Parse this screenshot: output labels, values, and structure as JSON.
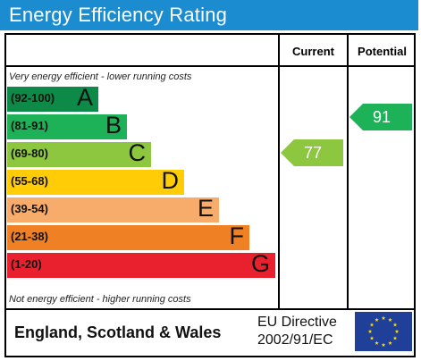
{
  "header": {
    "title": "Energy Efficiency Rating"
  },
  "columns": {
    "current": "Current",
    "potential": "Potential"
  },
  "notes": {
    "top": "Very energy efficient - lower running costs",
    "bottom": "Not energy efficient - higher running costs"
  },
  "bands": [
    {
      "range": "(92-100)",
      "letter": "A",
      "color": "#0d8a47"
    },
    {
      "range": "(81-91)",
      "letter": "B",
      "color": "#1db258"
    },
    {
      "range": "(69-80)",
      "letter": "C",
      "color": "#8dc63f"
    },
    {
      "range": "(55-68)",
      "letter": "D",
      "color": "#ffcc05"
    },
    {
      "range": "(39-54)",
      "letter": "E",
      "color": "#f7ac6b"
    },
    {
      "range": "(21-38)",
      "letter": "F",
      "color": "#ef8023"
    },
    {
      "range": "(1-20)",
      "letter": "G",
      "color": "#e9212f"
    }
  ],
  "ratings": {
    "current": {
      "value": "77",
      "band": "C",
      "color": "#8dc63f"
    },
    "potential": {
      "value": "91",
      "band": "B",
      "color": "#1db258"
    }
  },
  "footer": {
    "region": "England, Scotland & Wales",
    "directive_line1": "EU Directive",
    "directive_line2": "2002/91/EC",
    "flag_icon": "eu-flag-icon"
  }
}
